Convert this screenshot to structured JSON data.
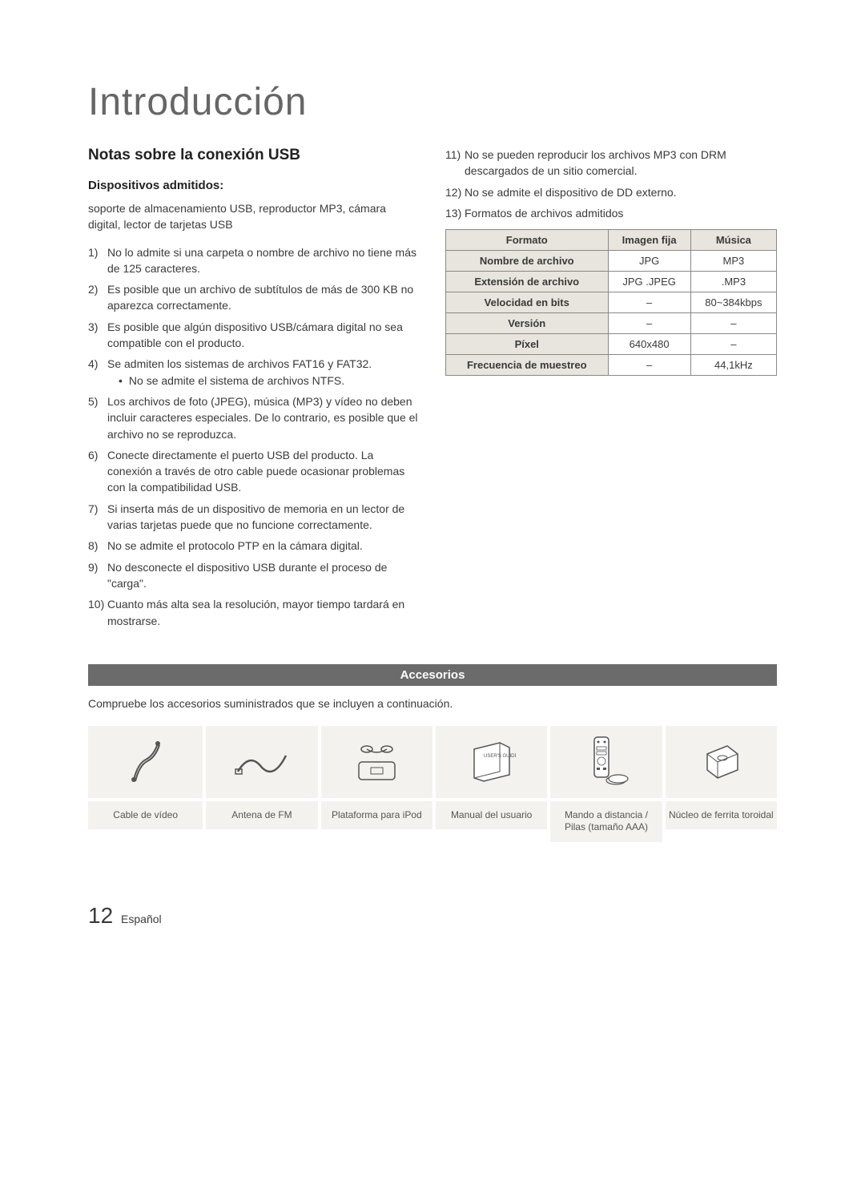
{
  "title": "Introducción",
  "usb": {
    "heading": "Notas sobre la conexión USB",
    "subheading": "Dispositivos admitidos:",
    "intro": "soporte de almacenamiento USB, reproductor MP3, cámara digital, lector de tarjetas USB",
    "items": [
      {
        "n": "1)",
        "t": "No lo admite si una carpeta o nombre de archivo no tiene más de 125 caracteres."
      },
      {
        "n": "2)",
        "t": "Es posible que un archivo de subtítulos de más de 300 KB no aparezca correctamente."
      },
      {
        "n": "3)",
        "t": "Es posible que algún dispositivo USB/cámara digital no sea compatible con el producto."
      },
      {
        "n": "4)",
        "t": "Se admiten los sistemas de archivos FAT16 y FAT32.",
        "sub": "No se admite el sistema de archivos NTFS."
      },
      {
        "n": "5)",
        "t": "Los archivos de foto (JPEG), música (MP3) y vídeo no deben incluir caracteres especiales. De lo contrario, es posible que el archivo no se reproduzca."
      },
      {
        "n": "6)",
        "t": "Conecte directamente el puerto USB del producto. La conexión a través de otro cable puede ocasionar problemas con la compatibilidad USB."
      },
      {
        "n": "7)",
        "t": "Si inserta más de un dispositivo de memoria en un lector de varias tarjetas puede que no funcione correctamente."
      },
      {
        "n": "8)",
        "t": "No se admite el protocolo PTP en la cámara digital."
      },
      {
        "n": "9)",
        "t": "No desconecte el dispositivo USB durante el proceso de \"carga\"."
      },
      {
        "n": "10)",
        "t": "Cuanto más alta sea la resolución, mayor tiempo tardará en mostrarse."
      }
    ],
    "items_right": [
      {
        "n": "11)",
        "t": "No se pueden reproducir los archivos MP3 con DRM descargados de un sitio comercial."
      },
      {
        "n": "12)",
        "t": "No se admite el dispositivo de DD externo."
      },
      {
        "n": "13)",
        "t": "Formatos de archivos admitidos"
      }
    ]
  },
  "format_table": {
    "headers": [
      "Formato",
      "Imagen fija",
      "Música"
    ],
    "rows": [
      [
        "Nombre de archivo",
        "JPG",
        "MP3"
      ],
      [
        "Extensión de archivo",
        "JPG .JPEG",
        ".MP3"
      ],
      [
        "Velocidad en bits",
        "–",
        "80~384kbps"
      ],
      [
        "Versión",
        "–",
        "–"
      ],
      [
        "Píxel",
        "640x480",
        "–"
      ],
      [
        "Frecuencia de muestreo",
        "–",
        "44,1kHz"
      ]
    ]
  },
  "accessories": {
    "bar": "Accesorios",
    "intro": "Compruebe los accesorios suministrados que se incluyen a continuación.",
    "items": [
      {
        "label": "Cable de vídeo"
      },
      {
        "label": "Antena de FM"
      },
      {
        "label": "Plataforma para iPod"
      },
      {
        "label": "Manual del usuario"
      },
      {
        "label": "Mando a distancia / Pilas (tamaño AAA)"
      },
      {
        "label": "Núcleo de ferrita toroidal"
      }
    ]
  },
  "footer": {
    "page": "12",
    "lang": "Español"
  }
}
